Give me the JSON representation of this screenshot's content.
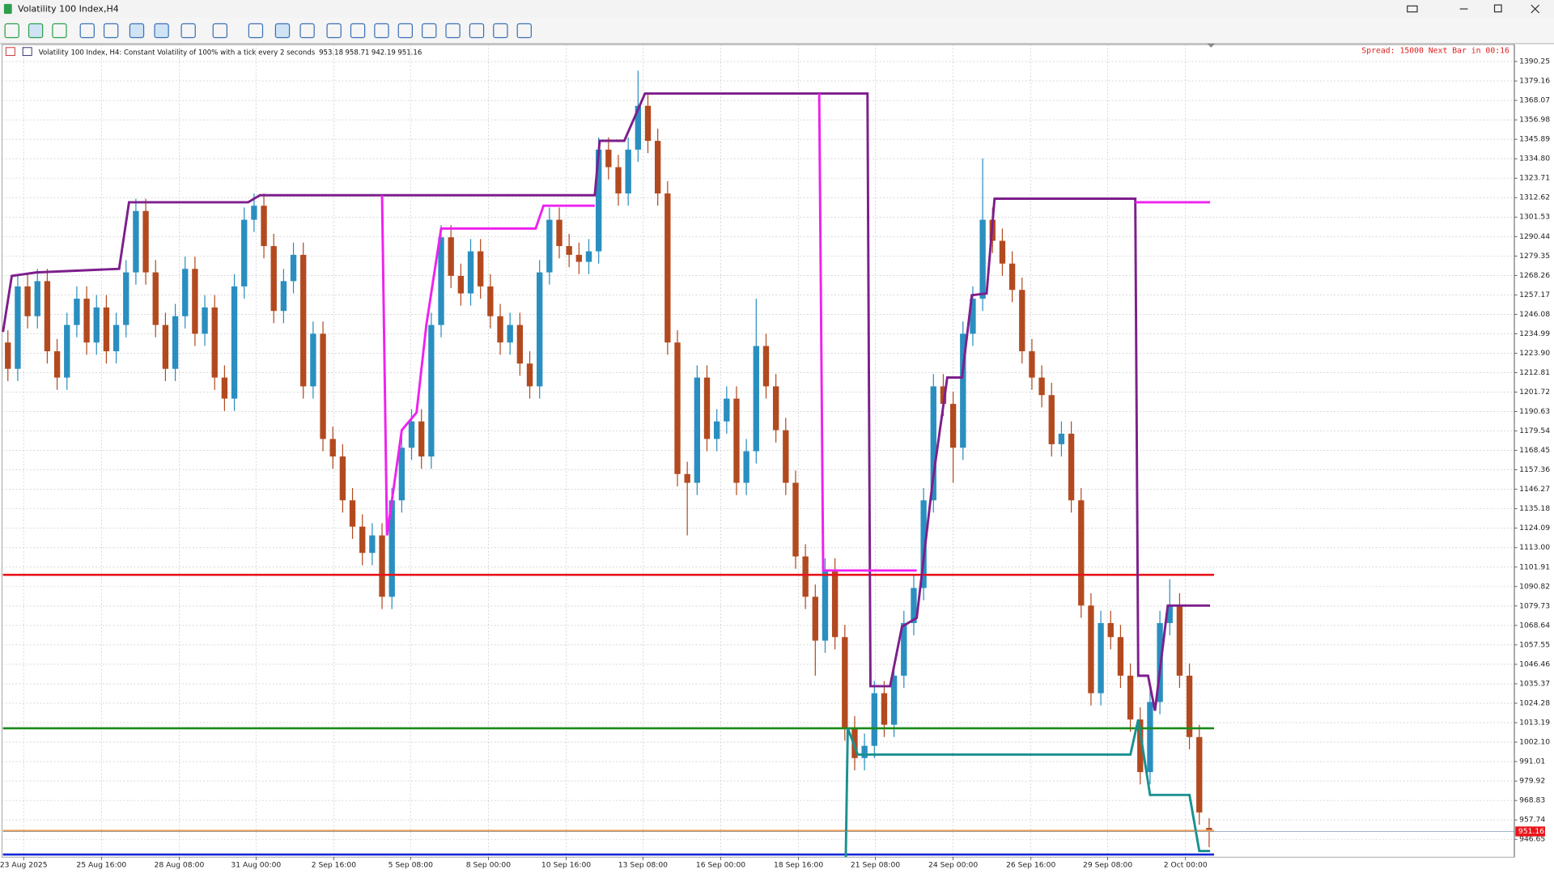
{
  "window": {
    "title": "Volatility 100 Index,H4"
  },
  "chart_data": {
    "type": "candlestick",
    "subtitle": "Volatility 100 Index, H4:  Constant Volatility of 100% with a tick every 2 seconds",
    "annotation": "Spread: 15000 Next Bar in 00:16",
    "up_color": "#2a8fc0",
    "down_color": "#b34a1f",
    "grid": true,
    "xlim": [
      -0.5,
      122.5
    ],
    "xticks": [
      {
        "value": 1.6,
        "label": "23 Aug 2025"
      },
      {
        "value": 9.5,
        "label": "25 Aug 16:00"
      },
      {
        "value": 17.4,
        "label": "28 Aug 08:00"
      },
      {
        "value": 25.2,
        "label": "31 Aug 00:00"
      },
      {
        "value": 33.1,
        "label": "2 Sep 16:00"
      },
      {
        "value": 40.9,
        "label": "5 Sep 08:00"
      },
      {
        "value": 48.8,
        "label": "8 Sep 00:00"
      },
      {
        "value": 56.7,
        "label": "10 Sep 16:00"
      },
      {
        "value": 64.5,
        "label": "13 Sep 08:00"
      },
      {
        "value": 72.4,
        "label": "16 Sep 00:00"
      },
      {
        "value": 80.3,
        "label": "18 Sep 16:00"
      },
      {
        "value": 88.1,
        "label": "21 Sep 08:00"
      },
      {
        "value": 96,
        "label": "24 Sep 00:00"
      },
      {
        "value": 103.9,
        "label": "26 Sep 16:00"
      },
      {
        "value": 111.7,
        "label": "29 Sep 08:00"
      },
      {
        "value": 119.6,
        "label": "2 Oct 00:00"
      }
    ],
    "ylim": [
      936.5,
      1399.9
    ],
    "yticks": [
      1390.25,
      1379.16,
      1368.07,
      1356.98,
      1345.89,
      {
        "value": 1334.8,
        "label": "1334.80"
      },
      1323.71,
      1312.62,
      1301.53,
      1290.44,
      1279.35,
      1268.26,
      1257.17,
      1246.08,
      1234.99,
      {
        "value": 1223.9,
        "label": "1223.90"
      },
      1212.81,
      1201.72,
      1190.63,
      1179.54,
      1168.45,
      1157.36,
      1146.27,
      1135.18,
      1124.09,
      {
        "value": 1113,
        "label": "1113.00"
      },
      1101.91,
      1090.82,
      1079.73,
      1068.64,
      1057.55,
      1046.46,
      1035.37,
      1024.28,
      1013.19,
      {
        "value": 1002.1,
        "label": "1002.10"
      },
      991.01,
      979.92,
      968.83,
      957.74,
      946.65
    ],
    "open": [
      1230,
      1215,
      1262,
      1245,
      1265,
      1225,
      1210,
      1240,
      1255,
      1230,
      1250,
      1225,
      1240,
      1270,
      1305,
      1270,
      1240,
      1215,
      1245,
      1272,
      1235,
      1250,
      1210,
      1198,
      1262,
      1300,
      1308,
      1285,
      1248,
      1265,
      1280,
      1205,
      1235,
      1175,
      1165,
      1140,
      1125,
      1110,
      1120,
      1085,
      1140,
      1170,
      1185,
      1165,
      1240,
      1290,
      1268,
      1258,
      1282,
      1262,
      1245,
      1230,
      1240,
      1218,
      1205,
      1270,
      1300,
      1285,
      1280,
      1276,
      1282,
      1340,
      1330,
      1315,
      1340,
      1365,
      1345,
      1315,
      1230,
      1155,
      1150,
      1210,
      1175,
      1185,
      1198,
      1150,
      1168,
      1228,
      1205,
      1180,
      1150,
      1108,
      1085,
      1060,
      1100,
      1062,
      1010,
      993,
      1000,
      1030,
      1012,
      1040,
      1070,
      1090,
      1140,
      1205,
      1195,
      1170,
      1235,
      1255,
      1300,
      1288,
      1275,
      1260,
      1225,
      1210,
      1200,
      1172,
      1178,
      1140,
      1080,
      1030,
      1070,
      1062,
      1040,
      1015,
      985,
      1025,
      1070,
      1080,
      1040,
      1005,
      953.18
    ],
    "high": [
      1237,
      1269,
      1269,
      1272,
      1272,
      1232,
      1247,
      1262,
      1262,
      1257,
      1257,
      1247,
      1277,
      1312,
      1312,
      1277,
      1247,
      1252,
      1279,
      1279,
      1257,
      1257,
      1217,
      1269,
      1307,
      1315,
      1315,
      1292,
      1272,
      1287,
      1287,
      1242,
      1242,
      1182,
      1172,
      1147,
      1132,
      1127,
      1127,
      1147,
      1177,
      1192,
      1192,
      1247,
      1297,
      1297,
      1275,
      1289,
      1289,
      1269,
      1252,
      1247,
      1247,
      1225,
      1277,
      1307,
      1307,
      1292,
      1287,
      1289,
      1347,
      1347,
      1337,
      1347,
      1385,
      1372,
      1352,
      1322,
      1237,
      1162,
      1217,
      1217,
      1192,
      1205,
      1205,
      1175,
      1255,
      1235,
      1212,
      1187,
      1157,
      1115,
      1092,
      1107,
      1107,
      1069,
      1017,
      1007,
      1037,
      1037,
      1047,
      1077,
      1097,
      1147,
      1212,
      1212,
      1202,
      1242,
      1262,
      1335,
      1307,
      1295,
      1282,
      1267,
      1232,
      1217,
      1207,
      1185,
      1185,
      1147,
      1087,
      1077,
      1077,
      1069,
      1047,
      1022,
      1032,
      1077,
      1095,
      1087,
      1047,
      1012,
      958.71
    ],
    "low": [
      1208,
      1208,
      1238,
      1238,
      1218,
      1203,
      1203,
      1233,
      1223,
      1223,
      1218,
      1218,
      1233,
      1263,
      1263,
      1233,
      1208,
      1208,
      1238,
      1228,
      1228,
      1203,
      1191,
      1191,
      1255,
      1293,
      1278,
      1241,
      1241,
      1258,
      1198,
      1198,
      1168,
      1158,
      1133,
      1118,
      1103,
      1103,
      1078,
      1078,
      1133,
      1163,
      1158,
      1158,
      1233,
      1261,
      1251,
      1251,
      1255,
      1238,
      1223,
      1223,
      1211,
      1198,
      1198,
      1263,
      1278,
      1273,
      1269,
      1269,
      1275,
      1323,
      1308,
      1308,
      1333,
      1338,
      1308,
      1223,
      1148,
      1120,
      1143,
      1168,
      1168,
      1178,
      1143,
      1143,
      1161,
      1198,
      1173,
      1143,
      1101,
      1078,
      1040,
      1053,
      1055,
      1003,
      986,
      986,
      993,
      1005,
      1005,
      1033,
      1063,
      1083,
      1133,
      1188,
      1150,
      1163,
      1228,
      1248,
      1281,
      1268,
      1253,
      1218,
      1203,
      1193,
      1165,
      1165,
      1133,
      1073,
      1023,
      1023,
      1055,
      1033,
      1008,
      978,
      978,
      1018,
      1063,
      1033,
      998,
      955,
      942.19
    ],
    "close": [
      1215,
      1262,
      1245,
      1265,
      1225,
      1210,
      1240,
      1255,
      1230,
      1250,
      1225,
      1240,
      1270,
      1305,
      1270,
      1240,
      1215,
      1245,
      1272,
      1235,
      1250,
      1210,
      1198,
      1262,
      1300,
      1308,
      1285,
      1248,
      1265,
      1280,
      1205,
      1235,
      1175,
      1165,
      1140,
      1125,
      1110,
      1120,
      1085,
      1140,
      1170,
      1185,
      1165,
      1240,
      1290,
      1268,
      1258,
      1282,
      1262,
      1245,
      1230,
      1240,
      1218,
      1205,
      1270,
      1300,
      1285,
      1280,
      1276,
      1282,
      1340,
      1330,
      1315,
      1340,
      1365,
      1345,
      1315,
      1230,
      1155,
      1150,
      1210,
      1175,
      1185,
      1198,
      1150,
      1168,
      1228,
      1205,
      1180,
      1150,
      1108,
      1085,
      1060,
      1100,
      1062,
      1010,
      993,
      1000,
      1030,
      1012,
      1040,
      1070,
      1090,
      1140,
      1205,
      1195,
      1170,
      1235,
      1255,
      1300,
      1288,
      1275,
      1260,
      1225,
      1210,
      1200,
      1172,
      1178,
      1140,
      1080,
      1030,
      1070,
      1062,
      1040,
      1015,
      985,
      1025,
      1070,
      1080,
      1040,
      1005,
      962,
      951.16
    ],
    "levels": [
      {
        "value": 1097.5,
        "color": "#e8161b"
      },
      {
        "value": 1010,
        "color": "#1a8a1a"
      },
      {
        "value": 951.5,
        "color": "#f0a050"
      },
      {
        "value": 938,
        "color": "#1428d8"
      }
    ],
    "lines": [
      {
        "color": "#7d1f8c",
        "x": [
          -0.5,
          0.4,
          2.9,
          11.3,
          12.3,
          24.4,
          25.6,
          59.6,
          60.1,
          62.6,
          64.7,
          87.3,
          87.6,
          89.6,
          90.8,
          92.3,
          93.9,
          95.4,
          96.9,
          97.9,
          99.4,
          100.2,
          114.5,
          114.8,
          115.8,
          116.5,
          117.8,
          122.1
        ],
        "values": [
          1236,
          1268,
          1270,
          1272,
          1310,
          1310,
          1314,
          1314,
          1345,
          1345,
          1372,
          1372,
          1034,
          1034,
          1068,
          1073,
          1150,
          1210,
          1210,
          1257,
          1258,
          1312,
          1312,
          1040,
          1040,
          1020,
          1080,
          1080
        ]
      },
      {
        "color": "#ee22ee",
        "x": [
          38,
          38.5,
          40,
          41.5,
          42.5,
          44,
          53.6,
          54.4,
          59.6,
          null,
          82.4,
          82.8,
          92.3,
          null,
          114.5,
          122.1
        ],
        "values": [
          1314,
          1120,
          1180,
          1190,
          1240,
          1295,
          1295,
          1308,
          1308,
          null,
          1372,
          1100,
          1100,
          null,
          1310,
          1310
        ]
      },
      {
        "color": "#1a9090",
        "x": [
          85.1,
          85.3,
          86.3,
          114,
          114.8,
          116,
          120,
          121,
          122.1
        ],
        "values": [
          936.6,
          1010,
          995,
          995,
          1015,
          972,
          972,
          940,
          940
        ]
      }
    ]
  }
}
